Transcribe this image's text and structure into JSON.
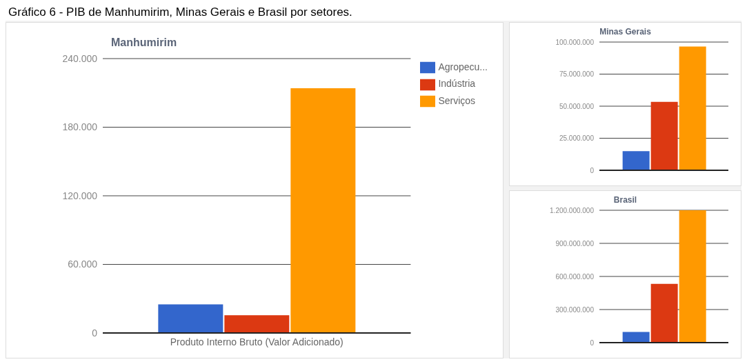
{
  "chart_data": [
    {
      "type": "bar",
      "title": "Manhumirim",
      "annotations": [
        "Gráfico 6 - PIB de Manhumirim, Minas Gerais e Brasil por setores."
      ],
      "categories": [
        "Produto Interno Bruto (Valor Adicionado)"
      ],
      "series": [
        {
          "name": "Agropecu...",
          "color": "#3366cc",
          "values": [
            25000
          ]
        },
        {
          "name": "Indústria",
          "color": "#dc3912",
          "values": [
            15500
          ]
        },
        {
          "name": "Serviços",
          "color": "#ff9900",
          "values": [
            214000
          ]
        }
      ],
      "ylim": [
        0,
        240000
      ],
      "yticks": [
        {
          "value": 0,
          "label": "0"
        },
        {
          "value": 60000,
          "label": "60.000"
        },
        {
          "value": 120000,
          "label": "120.000"
        },
        {
          "value": 180000,
          "label": "180.000"
        },
        {
          "value": 240000,
          "label": "240.000"
        }
      ],
      "grid": "y",
      "legend": "right"
    },
    {
      "type": "bar",
      "title": "Minas Gerais",
      "categories": [
        null
      ],
      "series": [
        {
          "color": "#3366cc",
          "values": [
            14900000
          ]
        },
        {
          "color": "#dc3912",
          "values": [
            53300000
          ]
        },
        {
          "color": "#ff9900",
          "values": [
            96500000
          ]
        }
      ],
      "ylim": [
        0,
        100000000
      ],
      "yticks": [
        {
          "value": 0,
          "label": "0"
        },
        {
          "value": 25000000,
          "label": "25.000.000"
        },
        {
          "value": 50000000,
          "label": "50.000.000"
        },
        {
          "value": 75000000,
          "label": "75.000.000"
        },
        {
          "value": 100000000,
          "label": "100.000.000"
        }
      ],
      "grid": "y"
    },
    {
      "type": "bar",
      "title": "Brasil",
      "categories": [
        null
      ],
      "series": [
        {
          "color": "#3366cc",
          "values": [
            97000000
          ]
        },
        {
          "color": "#dc3912",
          "values": [
            533000000
          ]
        },
        {
          "color": "#ff9900",
          "values": [
            1200000000
          ]
        }
      ],
      "ylim": [
        0,
        1200000000
      ],
      "yticks": [
        {
          "value": 0,
          "label": "0"
        },
        {
          "value": 300000000,
          "label": "300.000.000"
        },
        {
          "value": 600000000,
          "label": "600.000.000"
        },
        {
          "value": 900000000,
          "label": "900.000.000"
        },
        {
          "value": 1200000000,
          "label": "1.200.000.000"
        }
      ],
      "grid": "y"
    }
  ]
}
